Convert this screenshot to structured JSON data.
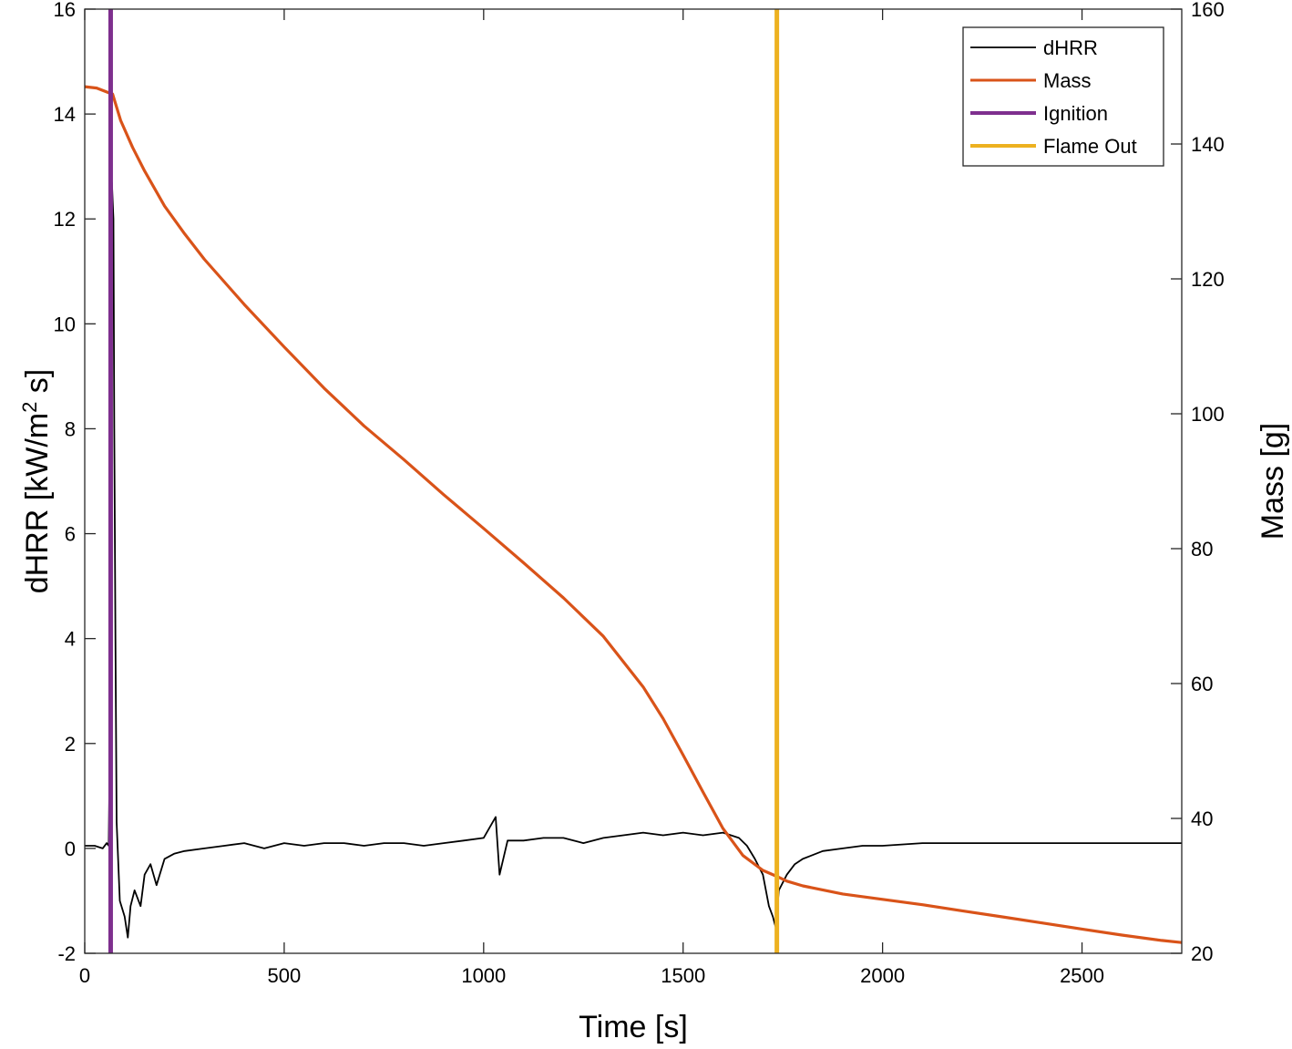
{
  "chart_data": {
    "type": "line",
    "title": "",
    "xlabel": "Time [s]",
    "ylabel_left": "dHRR [kW/m",
    "ylabel_left_sup": "2",
    "ylabel_left_tail": " s]",
    "ylabel_right": "Mass [g]",
    "xlim": [
      0,
      2750
    ],
    "ylim_left": [
      -2,
      16
    ],
    "ylim_right": [
      20,
      160
    ],
    "xticks": [
      0,
      500,
      1000,
      1500,
      2000,
      2500
    ],
    "yticks_left": [
      -2,
      0,
      2,
      4,
      6,
      8,
      10,
      12,
      14,
      16
    ],
    "yticks_right": [
      20,
      40,
      60,
      80,
      100,
      120,
      140,
      160
    ],
    "grid": false,
    "legend_position": "top-right",
    "series": [
      {
        "name": "dHRR",
        "axis": "left",
        "color": "#000000",
        "points": [
          [
            0,
            0.05
          ],
          [
            25,
            0.05
          ],
          [
            45,
            0.0
          ],
          [
            55,
            0.1
          ],
          [
            60,
            0.05
          ],
          [
            63,
            2.0
          ],
          [
            66,
            8.0
          ],
          [
            68,
            12.7
          ],
          [
            72,
            12.0
          ],
          [
            74,
            8.0
          ],
          [
            77,
            4.0
          ],
          [
            80,
            0.5
          ],
          [
            88,
            -1.0
          ],
          [
            100,
            -1.3
          ],
          [
            108,
            -1.7
          ],
          [
            115,
            -1.1
          ],
          [
            125,
            -0.8
          ],
          [
            140,
            -1.1
          ],
          [
            150,
            -0.5
          ],
          [
            165,
            -0.3
          ],
          [
            180,
            -0.7
          ],
          [
            200,
            -0.2
          ],
          [
            225,
            -0.1
          ],
          [
            250,
            -0.05
          ],
          [
            300,
            0.0
          ],
          [
            350,
            0.05
          ],
          [
            400,
            0.1
          ],
          [
            450,
            0.0
          ],
          [
            500,
            0.1
          ],
          [
            550,
            0.05
          ],
          [
            600,
            0.1
          ],
          [
            650,
            0.1
          ],
          [
            700,
            0.05
          ],
          [
            750,
            0.1
          ],
          [
            800,
            0.1
          ],
          [
            850,
            0.05
          ],
          [
            900,
            0.1
          ],
          [
            950,
            0.15
          ],
          [
            1000,
            0.2
          ],
          [
            1030,
            0.6
          ],
          [
            1040,
            -0.5
          ],
          [
            1060,
            0.15
          ],
          [
            1100,
            0.15
          ],
          [
            1150,
            0.2
          ],
          [
            1200,
            0.2
          ],
          [
            1250,
            0.1
          ],
          [
            1300,
            0.2
          ],
          [
            1350,
            0.25
          ],
          [
            1400,
            0.3
          ],
          [
            1450,
            0.25
          ],
          [
            1500,
            0.3
          ],
          [
            1550,
            0.25
          ],
          [
            1600,
            0.3
          ],
          [
            1640,
            0.2
          ],
          [
            1660,
            0.05
          ],
          [
            1680,
            -0.2
          ],
          [
            1700,
            -0.5
          ],
          [
            1715,
            -1.1
          ],
          [
            1725,
            -1.3
          ],
          [
            1732,
            -1.5
          ],
          [
            1740,
            -0.8
          ],
          [
            1760,
            -0.5
          ],
          [
            1780,
            -0.3
          ],
          [
            1800,
            -0.2
          ],
          [
            1850,
            -0.05
          ],
          [
            1900,
            0.0
          ],
          [
            1950,
            0.05
          ],
          [
            2000,
            0.05
          ],
          [
            2100,
            0.1
          ],
          [
            2200,
            0.1
          ],
          [
            2300,
            0.1
          ],
          [
            2400,
            0.1
          ],
          [
            2500,
            0.1
          ],
          [
            2600,
            0.1
          ],
          [
            2700,
            0.1
          ],
          [
            2750,
            0.1
          ]
        ]
      },
      {
        "name": "Mass",
        "axis": "right",
        "color": "#D95319",
        "points": [
          [
            0,
            148.5
          ],
          [
            30,
            148.3
          ],
          [
            60,
            147.6
          ],
          [
            70,
            147.4
          ],
          [
            90,
            143.5
          ],
          [
            120,
            139.5
          ],
          [
            150,
            136.0
          ],
          [
            200,
            130.8
          ],
          [
            250,
            126.7
          ],
          [
            300,
            122.9
          ],
          [
            400,
            116.2
          ],
          [
            500,
            109.9
          ],
          [
            600,
            103.8
          ],
          [
            700,
            98.2
          ],
          [
            800,
            93.2
          ],
          [
            900,
            88.0
          ],
          [
            1000,
            83.0
          ],
          [
            1100,
            77.9
          ],
          [
            1200,
            72.7
          ],
          [
            1300,
            67.0
          ],
          [
            1400,
            59.5
          ],
          [
            1450,
            54.8
          ],
          [
            1500,
            49.4
          ],
          [
            1550,
            43.9
          ],
          [
            1600,
            38.5
          ],
          [
            1650,
            34.5
          ],
          [
            1700,
            32.3
          ],
          [
            1735,
            31.4
          ],
          [
            1760,
            30.7
          ],
          [
            1800,
            30.0
          ],
          [
            1900,
            28.8
          ],
          [
            2000,
            28.0
          ],
          [
            2100,
            27.2
          ],
          [
            2200,
            26.3
          ],
          [
            2300,
            25.4
          ],
          [
            2400,
            24.5
          ],
          [
            2500,
            23.6
          ],
          [
            2600,
            22.7
          ],
          [
            2700,
            21.9
          ],
          [
            2750,
            21.6
          ]
        ]
      },
      {
        "name": "Ignition",
        "type": "vline",
        "color": "#7E2F8E",
        "x": 65
      },
      {
        "name": "Flame Out",
        "type": "vline",
        "color": "#EDB120",
        "x": 1735
      }
    ]
  }
}
